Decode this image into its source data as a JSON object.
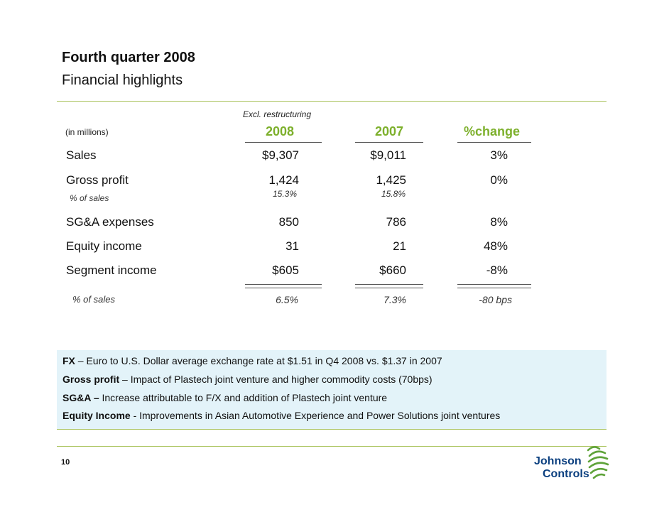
{
  "title": {
    "line1": "Fourth quarter 2008",
    "line2": "Financial highlights"
  },
  "table": {
    "note_above": "Excl. restructuring",
    "units": "(in millions)",
    "headers": [
      "2008",
      "2007",
      "%change"
    ],
    "rows": {
      "sales": {
        "label": "Sales",
        "v2008": "$9,307",
        "v2007": "$9,011",
        "change": "3%"
      },
      "gross_profit": {
        "label": "Gross profit",
        "v2008": "1,424",
        "v2007": "1,425",
        "change": "0%"
      },
      "gross_pct": {
        "label": "% of sales",
        "v2008": "15.3%",
        "v2007": "15.8%"
      },
      "sga": {
        "label": "SG&A expenses",
        "v2008": "850",
        "v2007": "786",
        "change": "8%"
      },
      "equity": {
        "label": "Equity income",
        "v2008": "31",
        "v2007": "21",
        "change": "48%"
      },
      "segment": {
        "label": "Segment income",
        "v2008": "$605",
        "v2007": "$660",
        "change": "-8%"
      },
      "segment_pct": {
        "label": "% of sales",
        "v2008": "6.5%",
        "v2007": "7.3%",
        "change": "-80 bps"
      }
    }
  },
  "notes": [
    {
      "bold": "FX",
      "text": " – Euro to U.S. Dollar average exchange rate at $1.51 in Q4 2008 vs. $1.37 in 2007"
    },
    {
      "bold": "Gross profit",
      "text": " – Impact of Plastech joint venture and higher commodity costs (70bps)"
    },
    {
      "bold": "SG&A –",
      "text": " Increase attributable to F/X and addition of Plastech joint venture"
    },
    {
      "bold": "Equity Income",
      "text": " - Improvements in Asian Automotive Experience and Power Solutions joint ventures"
    }
  ],
  "page_number": "10",
  "logo": {
    "line1": "Johnson",
    "line2": "Controls"
  },
  "colors": {
    "accent_green": "#7db02c",
    "rule_green": "#a8c25a",
    "note_bg": "#e3f3f9",
    "logo_blue": "#0b3f7f",
    "logo_green": "#5fa33a"
  }
}
